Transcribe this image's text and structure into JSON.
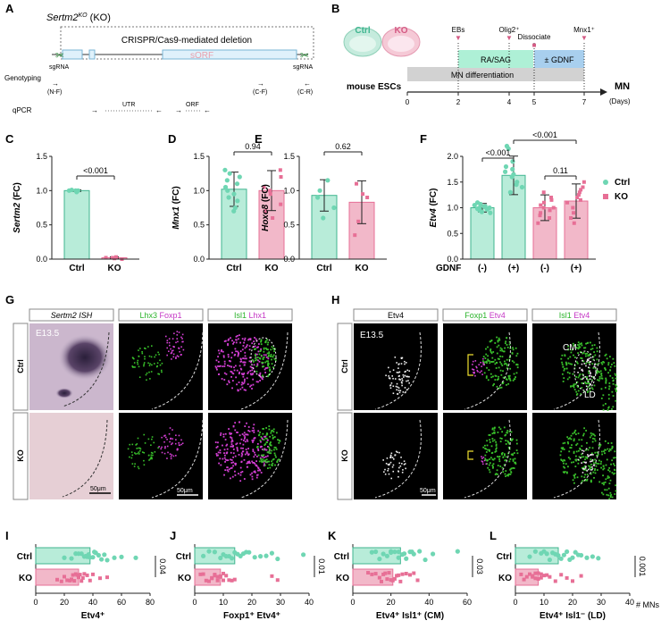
{
  "colors": {
    "ctrl": "#6fd6b3",
    "ctrl_dark": "#3fb58f",
    "ko": "#e76f96",
    "ko_fill": "#f2b8c9",
    "ctrl_fill": "#b8ecd9",
    "green": "#39c12b",
    "magenta": "#d43fd4"
  },
  "panel_letters": [
    "A",
    "B",
    "C",
    "D",
    "E",
    "F",
    "G",
    "H",
    "I",
    "J",
    "K",
    "L"
  ],
  "panelA": {
    "title": "Sertm2",
    "title_sup": "KO",
    "title_suffix": " (KO)",
    "deletion_label": "CRISPR/Cas9-mediated deletion",
    "sorf_label": "sORF",
    "sgrna_left": "sgRNA",
    "sgrna_right": "sgRNA",
    "genotyping_label": "Genotyping",
    "nf": "(N-F)",
    "cf": "(C-F)",
    "cr": "(C-R)",
    "qpcr_label": "qPCR",
    "utr": "UTR",
    "orf": "ORF"
  },
  "panelB": {
    "ctrl": "Ctrl",
    "ko": "KO",
    "ebs": "EBs",
    "olig2": "Olig2⁺",
    "dissociate": "Dissociate",
    "mnx1": "Mnx1⁺",
    "ra_sag": "RA/SAG",
    "gdnf": "± GDNF",
    "mn_diff": "MN differentiation",
    "mouse_escs": "mouse ESCs",
    "mn": "MN",
    "days": "(Days)",
    "ticks": [
      "0",
      "2",
      "4",
      "5",
      "7"
    ]
  },
  "panelC": {
    "chart_data": {
      "type": "bar",
      "ylabel": "Sertm2 (FC)",
      "categories": [
        "Ctrl",
        "KO"
      ],
      "values": [
        1.0,
        0.02
      ],
      "ylim": [
        0,
        1.5
      ],
      "yticks": [
        "0.0",
        "0.5",
        "1.0",
        "1.5"
      ],
      "pvalue": "<0.001",
      "points": [
        [
          0.98,
          1.0,
          1.0,
          1.01,
          1.0
        ],
        [
          0.01,
          0.02,
          0.0,
          0.03,
          0.02
        ]
      ]
    }
  },
  "panelD": {
    "chart_data": {
      "type": "bar",
      "ylabel": "Mnx1 (FC)",
      "categories": [
        "Ctrl",
        "KO"
      ],
      "values": [
        1.02,
        1.0
      ],
      "ylim": [
        0,
        1.5
      ],
      "yticks": [
        "0.0",
        "0.5",
        "1.0",
        "1.5"
      ],
      "pvalue": "0.94",
      "points": [
        [
          1.25,
          1.2,
          1.1,
          1.05,
          0.95,
          0.9,
          0.85,
          1.15,
          0.75,
          0.7,
          1.0,
          1.3
        ],
        [
          1.3,
          1.2,
          1.05,
          0.95,
          0.8,
          0.7,
          1.0,
          0.6
        ]
      ]
    }
  },
  "panelE": {
    "chart_data": {
      "type": "bar",
      "ylabel": "Hoxc8 (FC)",
      "categories": [
        "Ctrl",
        "KO"
      ],
      "values": [
        0.93,
        0.83
      ],
      "ylim": [
        0,
        1.5
      ],
      "yticks": [
        "0.0",
        "0.5",
        "1.0",
        "1.5"
      ],
      "pvalue": "0.62",
      "points": [
        [
          1.15,
          1.0,
          0.9,
          0.75,
          0.6
        ],
        [
          1.1,
          0.95,
          0.55,
          0.35,
          0.9
        ]
      ]
    }
  },
  "panelF": {
    "chart_data": {
      "type": "bar",
      "ylabel": "Etv4 (FC)",
      "categories": [
        "(-)",
        "(+)",
        "(-)",
        "(+)"
      ],
      "values": [
        1.0,
        1.63,
        1.0,
        1.13
      ],
      "ylim": [
        0,
        2.0
      ],
      "yticks": [
        "0.0",
        "0.5",
        "1.0",
        "1.5",
        "2.0"
      ],
      "xlabel": "GDNF",
      "legend": [
        "Ctrl",
        "KO"
      ],
      "p1": "<0.001",
      "p2": "<0.001",
      "p3": "0.11",
      "points": [
        [
          1.0,
          0.95,
          1.05,
          0.9,
          1.1,
          1.0,
          0.92,
          0.98,
          1.02,
          1.07,
          0.97,
          1.03
        ],
        [
          2.2,
          2.15,
          1.9,
          1.8,
          1.7,
          1.6,
          1.5,
          1.45,
          1.4,
          1.3,
          1.75,
          1.65
        ],
        [
          1.3,
          1.2,
          1.1,
          1.0,
          0.9,
          0.85,
          0.8,
          0.7,
          1.05,
          0.95,
          1.15,
          1.0
        ],
        [
          1.5,
          1.4,
          1.35,
          1.25,
          1.2,
          1.1,
          1.0,
          0.9,
          0.8,
          0.7,
          1.3,
          1.15
        ]
      ]
    }
  },
  "panelG": {
    "headers": [
      "Sertm2 ISH",
      "Lhx3",
      "Foxp1",
      "Isl1",
      "Lhx1"
    ],
    "stage": "E13.5",
    "rows": [
      "Ctrl",
      "KO"
    ],
    "scale": "50μm"
  },
  "panelH": {
    "headers": [
      "Etv4",
      "Foxp1",
      "Etv4",
      "Isl1",
      "Etv4"
    ],
    "stage": "E13.5",
    "rows": [
      "Ctrl",
      "KO"
    ],
    "cm": "CM",
    "ld": "LD",
    "scale": "50μm"
  },
  "bottom": {
    "units": "# MNs",
    "panels": [
      {
        "xlabel": "Etv4⁺",
        "p": "0.04",
        "ticks": [
          "0",
          "20",
          "40",
          "60",
          "80"
        ],
        "xmax": 80,
        "values": [
          38,
          30
        ],
        "ctrl_pts": [
          20,
          25,
          28,
          30,
          32,
          34,
          36,
          38,
          40,
          42,
          44,
          46,
          48,
          50,
          55,
          60,
          70,
          35,
          37,
          41
        ],
        "ko_pts": [
          15,
          18,
          20,
          22,
          24,
          26,
          28,
          30,
          32,
          34,
          36,
          38,
          40,
          45,
          50,
          25,
          27,
          29,
          31,
          33
        ]
      },
      {
        "xlabel": "Foxp1⁺ Etv4⁺",
        "p": "0.01",
        "ticks": [
          "0",
          "10",
          "20",
          "30",
          "40"
        ],
        "xmax": 40,
        "values": [
          14,
          9
        ],
        "ctrl_pts": [
          3,
          5,
          7,
          9,
          11,
          13,
          15,
          17,
          19,
          21,
          23,
          25,
          27,
          29,
          38,
          10,
          12,
          14,
          16,
          18
        ],
        "ko_pts": [
          2,
          3,
          4,
          5,
          6,
          7,
          8,
          9,
          10,
          11,
          12,
          13,
          14,
          27,
          29,
          6,
          8,
          10,
          7,
          9
        ]
      },
      {
        "xlabel": "Etv4⁺ Isl1⁺ (CM)",
        "p": "0.03",
        "ticks": [
          "0",
          "20",
          "40",
          "60"
        ],
        "xmax": 60,
        "values": [
          25,
          21
        ],
        "ctrl_pts": [
          10,
          12,
          14,
          16,
          18,
          20,
          22,
          24,
          26,
          28,
          30,
          32,
          35,
          38,
          42,
          55,
          20,
          24,
          27,
          31
        ],
        "ko_pts": [
          8,
          10,
          12,
          14,
          16,
          18,
          20,
          22,
          24,
          26,
          28,
          30,
          32,
          34,
          19,
          21,
          23,
          25,
          17,
          15
        ]
      },
      {
        "xlabel": "Etv4⁺ Isl1⁻ (LD)",
        "p": "0.001",
        "ticks": [
          "0",
          "10",
          "20",
          "30",
          "40"
        ],
        "xmax": 40,
        "values": [
          15,
          8
        ],
        "ctrl_pts": [
          5,
          7,
          9,
          11,
          13,
          15,
          17,
          19,
          21,
          23,
          25,
          27,
          29,
          12,
          14,
          16,
          18,
          20,
          10,
          22
        ],
        "ko_pts": [
          2,
          3,
          4,
          5,
          6,
          7,
          8,
          9,
          10,
          11,
          12,
          14,
          16,
          18,
          20,
          23,
          6,
          8,
          7,
          9
        ]
      }
    ]
  }
}
